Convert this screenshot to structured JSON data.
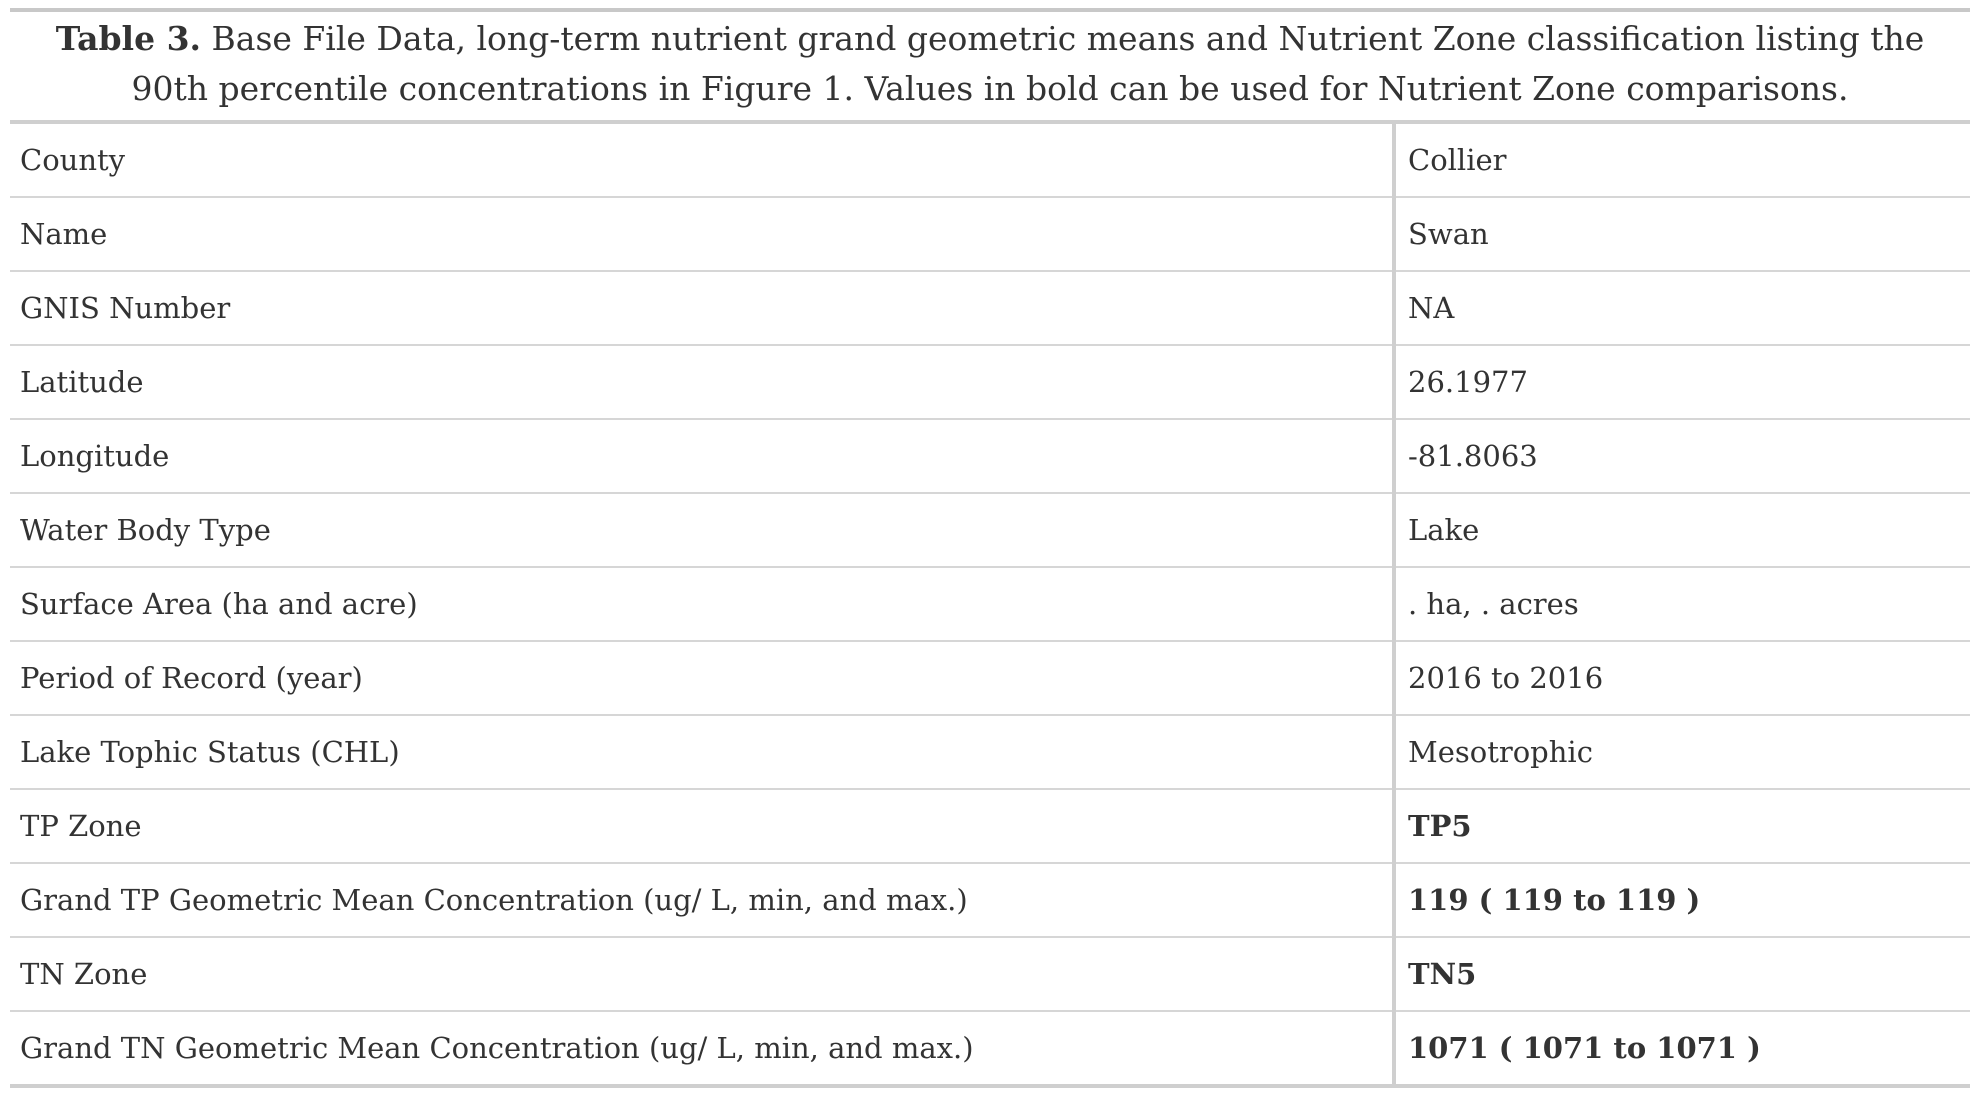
{
  "caption": {
    "label": "Table 3.",
    "text": " Base File Data, long-term nutrient grand geometric means and Nutrient Zone classification listing the 90th percentile concentrations in Figure 1. Values in bold can be used for Nutrient Zone comparisons."
  },
  "rows": [
    {
      "field": "County",
      "value": "Collier"
    },
    {
      "field": "Name",
      "value": "Swan"
    },
    {
      "field": "GNIS Number",
      "value": "NA"
    },
    {
      "field": "Latitude",
      "value": "26.1977"
    },
    {
      "field": "Longitude",
      "value": "-81.8063"
    },
    {
      "field": "Water Body Type",
      "value": "Lake"
    },
    {
      "field": "Surface Area (ha and acre)",
      "value": ". ha, . acres"
    },
    {
      "field": "Period of Record (year)",
      "value": "2016 to 2016"
    },
    {
      "field": "Lake Tophic Status (CHL)",
      "value": "Mesotrophic"
    },
    {
      "field": "TP Zone",
      "value": "TP5"
    },
    {
      "field": "Grand TP Geometric Mean Concentration (ug/ L, min, and max.)",
      "value": "119 ( 119 to 119 )"
    },
    {
      "field": "TN Zone",
      "value": "TN5"
    },
    {
      "field": "Grand TN Geometric Mean Concentration (ug/ L, min, and max.)",
      "value": "1071 ( 1071 to 1071 )"
    }
  ]
}
